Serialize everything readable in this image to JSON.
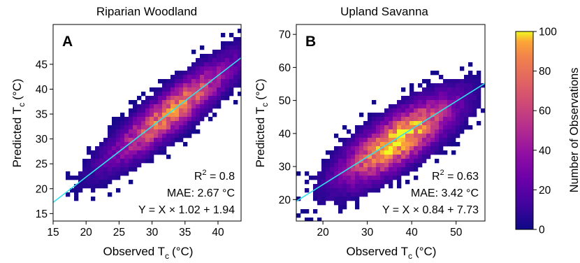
{
  "figure": {
    "colormap": "plasma",
    "fit_line_color": "#33e0ee"
  },
  "chart_data": [
    {
      "type": "heatmap",
      "panel_letter": "A",
      "title": "Riparian Woodland",
      "xlabel": "Observed T",
      "ylabel": "Predicted T",
      "label_subscript": "c",
      "label_unit": "(°C)",
      "xlim": [
        15,
        43.5
      ],
      "ylim": [
        13.5,
        53
      ],
      "xticks": [
        15,
        20,
        25,
        30,
        35,
        40
      ],
      "yticks": [
        15,
        20,
        25,
        30,
        35,
        40,
        45
      ],
      "grid": false,
      "fit": {
        "slope": 1.02,
        "intercept": 1.94
      },
      "density": {
        "cx": 33,
        "cy": 35.5,
        "sx": 6,
        "sy": 6.5,
        "rho": 0.9,
        "cx_range": [
          16.5,
          43.5
        ],
        "peak": 78
      },
      "stats": {
        "r2": "R",
        "r2_sup": "2",
        "r2_val": " = 0.8",
        "mae": "MAE: 2.67 °C",
        "equation": "Y = X × 1.02 + 1.94"
      }
    },
    {
      "type": "heatmap",
      "panel_letter": "B",
      "title": "Upland Savanna",
      "xlabel": "Observed T",
      "ylabel": "Predicted T",
      "label_subscript": "c",
      "label_unit": "(°C)",
      "xlim": [
        14,
        56.5
      ],
      "ylim": [
        13.5,
        73
      ],
      "xticks": [
        20,
        30,
        40,
        50
      ],
      "yticks": [
        20,
        30,
        40,
        50,
        60,
        70
      ],
      "grid": false,
      "fit": {
        "slope": 0.84,
        "intercept": 7.73
      },
      "density": {
        "cx": 37,
        "cy": 38,
        "sx": 8,
        "sy": 8,
        "rho": 0.78,
        "cx_range": [
          14,
          56.5
        ],
        "peak": 100
      },
      "stats": {
        "r2": "R",
        "r2_sup": "2",
        "r2_val": " = 0.63",
        "mae": "MAE: 3.42 °C",
        "equation": "Y = X × 0.84 + 7.73"
      }
    }
  ],
  "colorbar": {
    "label": "Number of Observations",
    "min": 0,
    "max": 100,
    "ticks": [
      0,
      20,
      40,
      60,
      80,
      100
    ]
  }
}
